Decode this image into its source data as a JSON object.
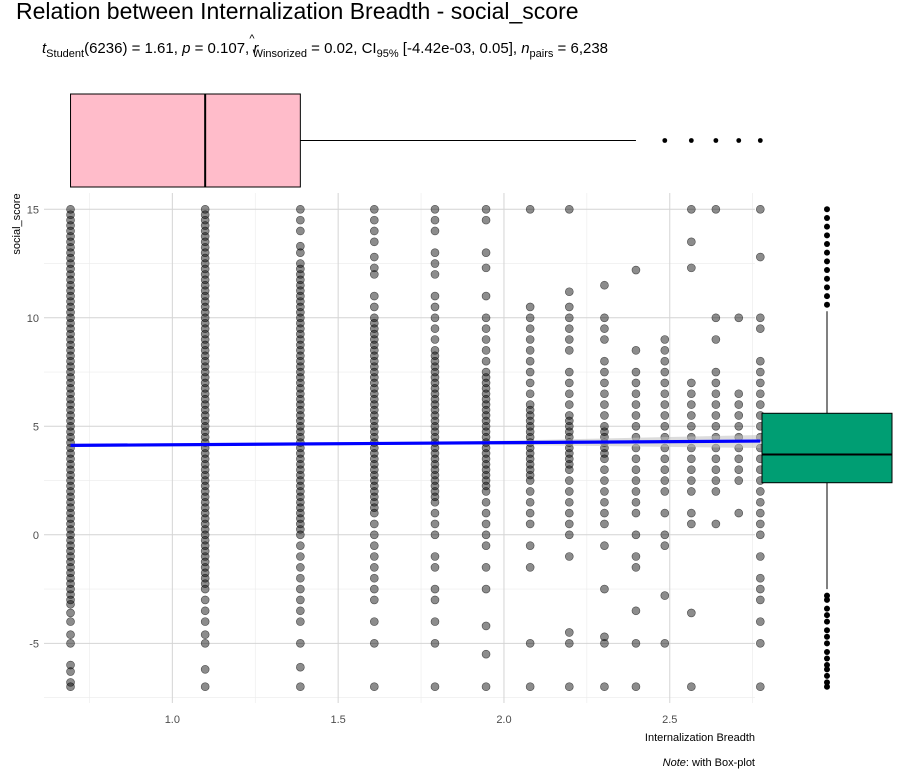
{
  "chart_data": {
    "type": "scatter",
    "title": "Relation between Internalization Breadth - social_score",
    "subtitle": {
      "t_symbol": "t",
      "t_sub": "Student",
      "t_df": "(6236) = 1.61, ",
      "p_symbol": "p",
      "p_text": " = 0.107, ",
      "r_symbol": "r",
      "r_hat": "^",
      "r_sub": "Winsorized",
      "r_text": " = 0.02, CI",
      "ci_sub": "95%",
      "ci_text": " [-4.42e-03, 0.05], ",
      "n_symbol": "n",
      "n_sub": "pairs",
      "n_text": " = 6,238"
    },
    "xlabel": "Internalization Breadth",
    "ylabel": "social_score",
    "caption": {
      "italic": "Note",
      "rest": ": with Box-plot"
    },
    "xlim": [
      0.613,
      2.757
    ],
    "ylim": [
      -7.75,
      15.75
    ],
    "x_ticks": [
      {
        "value": 1.0,
        "label": "1.0"
      },
      {
        "value": 1.5,
        "label": "1.5"
      },
      {
        "value": 2.0,
        "label": "2.0"
      },
      {
        "value": 2.5,
        "label": "2.5"
      }
    ],
    "y_ticks": [
      {
        "value": -5,
        "label": "-5"
      },
      {
        "value": 0,
        "label": "0"
      },
      {
        "value": 5,
        "label": "5"
      },
      {
        "value": 10,
        "label": "10"
      },
      {
        "value": 15,
        "label": "15"
      }
    ],
    "x_levels": [
      0.693,
      1.099,
      1.386,
      1.609,
      1.792,
      1.946,
      2.079,
      2.197,
      2.303,
      2.398,
      2.485,
      2.565,
      2.639,
      2.708,
      2.773
    ],
    "point_columns": [
      {
        "x": 0.693,
        "dense": [
          [
            -3.0,
            15.0
          ]
        ],
        "points": [
          -7.0,
          -6.8,
          -6.3,
          -6.0,
          -5.0,
          -4.6,
          -4.0,
          -3.6,
          -3.2
        ]
      },
      {
        "x": 1.099,
        "dense": [
          [
            -2.5,
            15.0
          ]
        ],
        "points": [
          -7.0,
          -6.2,
          -5.0,
          -4.6,
          -4.0,
          -3.5,
          -3.0
        ]
      },
      {
        "x": 1.386,
        "dense": [
          [
            0.0,
            12.5
          ]
        ],
        "points": [
          -7.0,
          -6.1,
          -5.0,
          -4.0,
          -3.5,
          -3.0,
          -2.5,
          -2.0,
          -1.5,
          -1.0,
          -0.5,
          13.0,
          13.3,
          14.0,
          14.5,
          15.0
        ]
      },
      {
        "x": 1.609,
        "dense": [
          [
            1.0,
            10.0
          ]
        ],
        "points": [
          -7.0,
          -5.0,
          -4.0,
          -3.0,
          -2.5,
          -2.0,
          -1.5,
          -1.0,
          -0.5,
          0.0,
          0.5,
          10.5,
          11.0,
          12.0,
          12.3,
          12.8,
          13.5,
          14.0,
          14.5,
          15.0
        ]
      },
      {
        "x": 1.792,
        "dense": [
          [
            1.5,
            8.5
          ]
        ],
        "points": [
          -7.0,
          -5.0,
          -4.0,
          -3.0,
          -2.5,
          -1.5,
          -1.0,
          0.0,
          0.5,
          1.0,
          9.0,
          9.5,
          10.0,
          10.5,
          11.0,
          12.0,
          12.5,
          13.0,
          14.0,
          14.5,
          15.0
        ]
      },
      {
        "x": 1.946,
        "dense": [
          [
            2.0,
            7.5
          ]
        ],
        "points": [
          -7.0,
          -5.5,
          -4.2,
          -2.5,
          -1.5,
          -0.5,
          0.0,
          0.5,
          1.0,
          1.5,
          8.0,
          8.5,
          9.0,
          9.5,
          10.0,
          11.0,
          12.3,
          13.0,
          14.5,
          15.0
        ]
      },
      {
        "x": 2.079,
        "dense": [
          [
            2.5,
            6.0
          ]
        ],
        "points": [
          -7.0,
          -5.0,
          -1.5,
          -0.5,
          0.5,
          1.0,
          1.5,
          2.0,
          6.5,
          7.0,
          7.5,
          8.0,
          8.5,
          9.0,
          9.5,
          10.0,
          10.5,
          15.0
        ]
      },
      {
        "x": 2.197,
        "dense": [
          [
            3.0,
            5.5
          ]
        ],
        "points": [
          -7.0,
          -5.0,
          -4.5,
          -1.0,
          0.0,
          0.5,
          1.0,
          1.5,
          2.0,
          2.5,
          6.0,
          6.5,
          7.0,
          7.5,
          8.5,
          9.0,
          9.5,
          10.0,
          10.5,
          11.2,
          15.0
        ]
      },
      {
        "x": 2.303,
        "dense": [
          [
            3.5,
            5.0
          ]
        ],
        "points": [
          -7.0,
          -5.0,
          -4.7,
          -2.5,
          -0.5,
          0.5,
          1.0,
          1.5,
          2.0,
          2.5,
          3.0,
          5.5,
          6.0,
          6.5,
          7.0,
          7.5,
          8.0,
          9.0,
          9.5,
          10.0,
          11.5
        ]
      },
      {
        "x": 2.398,
        "dense": [],
        "points": [
          -7.0,
          -5.0,
          -3.5,
          -1.5,
          -1.0,
          0.0,
          1.0,
          1.5,
          2.0,
          2.5,
          3.0,
          3.5,
          4.0,
          4.5,
          5.0,
          5.5,
          6.0,
          6.5,
          7.0,
          7.5,
          8.5,
          12.2
        ]
      },
      {
        "x": 2.485,
        "dense": [],
        "points": [
          -5.0,
          -2.8,
          -0.5,
          0.0,
          1.0,
          2.0,
          2.5,
          3.0,
          3.5,
          4.0,
          4.5,
          5.0,
          5.5,
          6.0,
          6.5,
          7.0,
          7.5,
          8.0,
          8.5,
          9.0
        ]
      },
      {
        "x": 2.565,
        "dense": [],
        "points": [
          -7.0,
          -3.6,
          0.5,
          1.0,
          2.0,
          2.5,
          3.0,
          3.5,
          4.0,
          4.5,
          5.0,
          5.5,
          6.0,
          6.5,
          7.0,
          12.3,
          13.5,
          15.0
        ]
      },
      {
        "x": 2.639,
        "dense": [],
        "points": [
          0.5,
          2.0,
          2.5,
          3.0,
          3.5,
          4.0,
          4.5,
          5.0,
          5.5,
          6.0,
          6.5,
          7.0,
          7.5,
          9.0,
          10.0,
          15.0
        ]
      },
      {
        "x": 2.708,
        "dense": [],
        "points": [
          1.0,
          2.5,
          3.0,
          3.5,
          4.0,
          4.5,
          5.0,
          5.5,
          6.0,
          6.5,
          10.0
        ]
      },
      {
        "x": 2.773,
        "dense": [],
        "points": [
          -7.0,
          -5.0,
          -4.0,
          -3.0,
          -2.5,
          -2.0,
          -1.0,
          0.0,
          0.5,
          1.0,
          1.5,
          2.0,
          2.5,
          3.0,
          3.5,
          4.0,
          4.5,
          5.0,
          5.5,
          6.0,
          6.5,
          7.0,
          7.5,
          8.0,
          9.5,
          10.0,
          12.8,
          15.0
        ]
      }
    ],
    "regression": {
      "x_start": 0.693,
      "y_start": 4.12,
      "x_end": 2.773,
      "y_end": 4.32,
      "color": "#0000FF",
      "ci_color": "#BFBFBF"
    },
    "x_boxplot": {
      "q1": 0.693,
      "median": 1.099,
      "q3": 1.386,
      "whisker_low": 0.693,
      "whisker_high": 2.398,
      "outliers": [
        2.485,
        2.565,
        2.639,
        2.708,
        2.773
      ],
      "fill": "#FFBCCA"
    },
    "y_boxplot": {
      "q1": 2.4,
      "median": 3.7,
      "q3": 5.6,
      "whisker_low": -2.5,
      "whisker_high": 10.3,
      "outliers_low": [
        -7.0,
        -6.8,
        -6.5,
        -6.2,
        -6.0,
        -5.7,
        -5.4,
        -5.0,
        -4.7,
        -4.4,
        -4.0,
        -3.7,
        -3.4,
        -3.0,
        -2.8
      ],
      "outliers_high": [
        10.6,
        11.0,
        11.4,
        11.8,
        12.2,
        12.6,
        13.0,
        13.4,
        13.8,
        14.2,
        14.6,
        15.0
      ],
      "fill": "#009E73"
    },
    "point_color": "#000000",
    "point_opacity": 0.45
  }
}
